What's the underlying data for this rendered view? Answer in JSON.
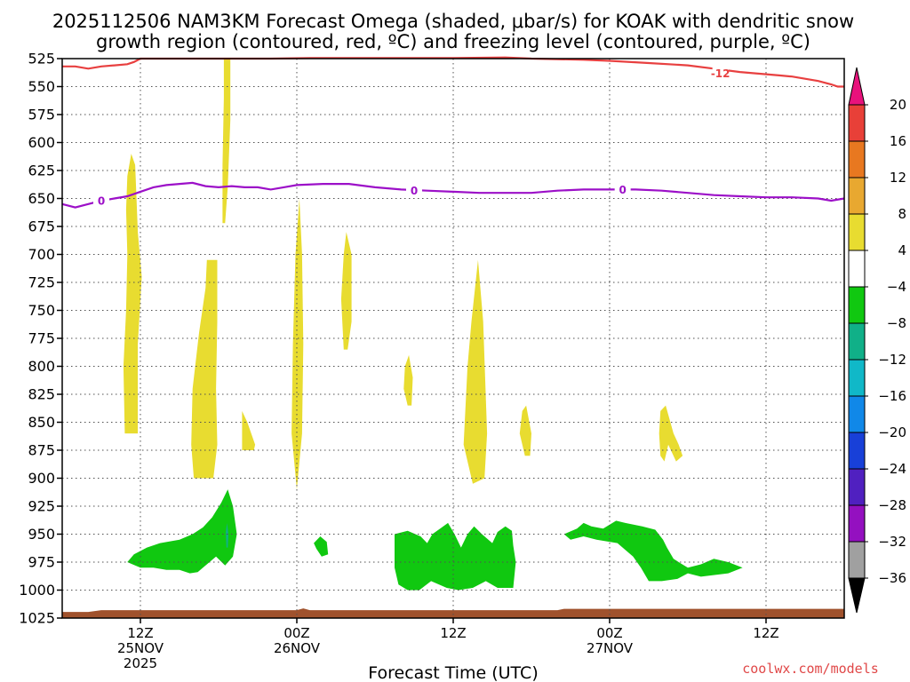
{
  "chart_data": {
    "type": "contour",
    "title_lines": [
      "2025112506 NAM3KM Forecast Omega (shaded, μbar/s) for KOAK with dendritic snow",
      "growth region (contoured, red, ºC) and freezing level (contoured, purple, ºC)"
    ],
    "xlabel": "Forecast Time (UTC)",
    "ylabel": "",
    "credit": "coolwx.com/models",
    "x_range_hours": [
      0,
      60
    ],
    "y_range_mb": [
      525,
      1025
    ],
    "y_ticks": [
      525,
      550,
      575,
      600,
      625,
      650,
      675,
      700,
      725,
      750,
      775,
      800,
      825,
      850,
      875,
      900,
      925,
      950,
      975,
      1000,
      1025
    ],
    "x_ticks": [
      {
        "hour": 6,
        "lines": [
          "12Z",
          "25NOV",
          "2025"
        ]
      },
      {
        "hour": 18,
        "lines": [
          "00Z",
          "26NOV"
        ]
      },
      {
        "hour": 30,
        "lines": [
          "12Z"
        ]
      },
      {
        "hour": 42,
        "lines": [
          "00Z",
          "27NOV"
        ]
      },
      {
        "hour": 54,
        "lines": [
          "12Z"
        ]
      }
    ],
    "grid": "dotted",
    "colorbar": {
      "labels": [
        "20",
        "16",
        "12",
        "8",
        "4",
        "−4",
        "−8",
        "−12",
        "−16",
        "−20",
        "−24",
        "−28",
        "−32",
        "−36"
      ],
      "colors": [
        "#e8127c",
        "#e84038",
        "#e87820",
        "#e8a830",
        "#e8dc30",
        "#ffffff",
        "#10c810",
        "#10b088",
        "#10b8c8",
        "#1088e8",
        "#1840d8",
        "#5020c0",
        "#9410c0",
        "#a0a0a0",
        "#000000"
      ]
    },
    "contours": [
      {
        "name": "dendritic snow growth region",
        "color": "#e84040",
        "label": "-12",
        "points": [
          [
            0,
            532
          ],
          [
            1,
            532
          ],
          [
            2,
            534
          ],
          [
            3,
            532
          ],
          [
            4,
            531
          ],
          [
            5,
            530
          ],
          [
            5.5,
            528
          ],
          [
            6,
            525
          ],
          [
            16,
            525
          ],
          [
            19,
            524.5
          ],
          [
            26,
            524.5
          ],
          [
            30,
            524.5
          ],
          [
            34,
            524
          ],
          [
            36,
            525
          ],
          [
            40,
            526
          ],
          [
            42,
            527
          ],
          [
            45,
            529
          ],
          [
            48,
            531
          ],
          [
            50,
            534
          ],
          [
            52,
            537
          ],
          [
            54,
            539
          ],
          [
            55,
            540
          ],
          [
            56,
            541
          ],
          [
            57,
            543
          ],
          [
            58,
            545
          ],
          [
            59,
            548
          ],
          [
            59.5,
            550
          ],
          [
            60,
            550
          ]
        ]
      },
      {
        "name": "freezing level",
        "color": "#9c10c8",
        "label": "0",
        "points": [
          [
            0,
            655
          ],
          [
            1,
            658
          ],
          [
            2,
            655
          ],
          [
            3,
            652
          ],
          [
            4,
            650
          ],
          [
            5,
            648
          ],
          [
            6,
            644
          ],
          [
            7,
            640
          ],
          [
            8,
            638
          ],
          [
            9,
            637
          ],
          [
            10,
            636
          ],
          [
            11,
            639
          ],
          [
            12,
            640
          ],
          [
            13,
            639
          ],
          [
            14,
            640
          ],
          [
            15,
            640
          ],
          [
            16,
            642
          ],
          [
            17,
            640
          ],
          [
            18,
            638
          ],
          [
            20,
            637
          ],
          [
            22,
            637
          ],
          [
            24,
            640
          ],
          [
            26,
            642
          ],
          [
            28,
            643
          ],
          [
            30,
            644
          ],
          [
            32,
            645
          ],
          [
            34,
            645
          ],
          [
            36,
            645
          ],
          [
            38,
            643
          ],
          [
            40,
            642
          ],
          [
            42,
            642
          ],
          [
            44,
            642
          ],
          [
            46,
            643
          ],
          [
            48,
            645
          ],
          [
            50,
            647
          ],
          [
            52,
            648
          ],
          [
            54,
            649
          ],
          [
            56,
            649
          ],
          [
            58,
            650
          ],
          [
            59,
            652
          ],
          [
            60,
            650
          ]
        ]
      }
    ],
    "omega_regions": [
      {
        "level": "4",
        "points": [
          [
            4.8,
            860
          ],
          [
            4.7,
            800
          ],
          [
            4.9,
            750
          ],
          [
            5,
            700
          ],
          [
            4.9,
            660
          ],
          [
            5,
            630
          ],
          [
            5.3,
            610
          ],
          [
            5.6,
            620
          ],
          [
            5.8,
            680
          ],
          [
            6.1,
            720
          ],
          [
            5.8,
            780
          ],
          [
            5.8,
            860
          ]
        ]
      },
      {
        "level": "4",
        "points": [
          [
            10.1,
            900
          ],
          [
            9.9,
            870
          ],
          [
            10,
            820
          ],
          [
            10.5,
            770
          ],
          [
            11,
            730
          ],
          [
            11.1,
            705
          ],
          [
            11.9,
            705
          ],
          [
            11.9,
            760
          ],
          [
            11.8,
            820
          ],
          [
            11.9,
            870
          ],
          [
            11.6,
            900
          ]
        ]
      },
      {
        "level": "4",
        "points": [
          [
            12.3,
            672
          ],
          [
            12.3,
            620
          ],
          [
            12.4,
            560
          ],
          [
            12.4,
            525
          ],
          [
            12.9,
            525
          ],
          [
            12.9,
            580
          ],
          [
            12.7,
            640
          ],
          [
            12.5,
            672
          ]
        ]
      },
      {
        "level": "4",
        "points": [
          [
            13.8,
            875
          ],
          [
            13.8,
            840
          ],
          [
            14.2,
            850
          ],
          [
            14.8,
            870
          ],
          [
            14.7,
            875
          ]
        ]
      },
      {
        "level": "4",
        "points": [
          [
            18,
            910
          ],
          [
            17.6,
            860
          ],
          [
            17.7,
            780
          ],
          [
            17.9,
            700
          ],
          [
            18.2,
            650
          ],
          [
            18.4,
            700
          ],
          [
            18.5,
            780
          ],
          [
            18.4,
            860
          ]
        ]
      },
      {
        "level": "4",
        "points": [
          [
            21.6,
            785
          ],
          [
            21.4,
            740
          ],
          [
            21.6,
            700
          ],
          [
            21.8,
            680
          ],
          [
            22.2,
            700
          ],
          [
            22.2,
            760
          ],
          [
            21.9,
            785
          ]
        ]
      },
      {
        "level": "4",
        "points": [
          [
            26.5,
            835
          ],
          [
            26.2,
            820
          ],
          [
            26.3,
            800
          ],
          [
            26.6,
            790
          ],
          [
            26.9,
            810
          ],
          [
            26.8,
            835
          ]
        ]
      },
      {
        "level": "4",
        "points": [
          [
            31.5,
            905
          ],
          [
            30.8,
            870
          ],
          [
            31.1,
            800
          ],
          [
            31.4,
            760
          ],
          [
            31.9,
            705
          ],
          [
            32.3,
            760
          ],
          [
            32.6,
            860
          ],
          [
            32.4,
            900
          ]
        ]
      },
      {
        "level": "4",
        "points": [
          [
            35.5,
            880
          ],
          [
            35.1,
            860
          ],
          [
            35.3,
            840
          ],
          [
            35.6,
            835
          ],
          [
            36,
            860
          ],
          [
            35.9,
            880
          ]
        ]
      },
      {
        "level": "4",
        "points": [
          [
            45.9,
            880
          ],
          [
            45.8,
            860
          ],
          [
            45.9,
            840
          ],
          [
            46.3,
            835
          ],
          [
            46.9,
            860
          ],
          [
            47.3,
            870
          ],
          [
            47.6,
            880
          ],
          [
            47.1,
            885
          ],
          [
            46.5,
            870
          ],
          [
            46.2,
            885
          ]
        ]
      },
      {
        "level": "-4",
        "points": [
          [
            5,
            975
          ],
          [
            5.5,
            968
          ],
          [
            6.5,
            962
          ],
          [
            7.5,
            958
          ],
          [
            9,
            955
          ],
          [
            10,
            950
          ],
          [
            10.8,
            944
          ],
          [
            11.5,
            935
          ],
          [
            12.2,
            922
          ],
          [
            12.7,
            910
          ],
          [
            13.1,
            925
          ],
          [
            13.4,
            950
          ],
          [
            13.1,
            970
          ],
          [
            12.5,
            978
          ],
          [
            11.8,
            970
          ],
          [
            11,
            978
          ],
          [
            10.4,
            984
          ],
          [
            9.8,
            985
          ],
          [
            9,
            982
          ],
          [
            8,
            982
          ],
          [
            7,
            980
          ],
          [
            6,
            980
          ]
        ]
      },
      {
        "level": "-4",
        "points": [
          [
            19.3,
            958
          ],
          [
            19.8,
            952
          ],
          [
            20.3,
            957
          ],
          [
            20.4,
            968
          ],
          [
            19.9,
            970
          ],
          [
            19.5,
            963
          ]
        ]
      },
      {
        "level": "-4",
        "points": [
          [
            25.5,
            950
          ],
          [
            26.5,
            947
          ],
          [
            27.5,
            952
          ],
          [
            28,
            958
          ],
          [
            28.4,
            950
          ],
          [
            29,
            945
          ],
          [
            29.6,
            940
          ],
          [
            30.1,
            950
          ],
          [
            30.6,
            962
          ],
          [
            31.1,
            950
          ],
          [
            31.6,
            943
          ],
          [
            32.2,
            950
          ],
          [
            33,
            958
          ],
          [
            33.4,
            948
          ],
          [
            34,
            943
          ],
          [
            34.5,
            947
          ],
          [
            34.6,
            960
          ],
          [
            34.8,
            975
          ],
          [
            34.6,
            998
          ],
          [
            33.4,
            998
          ],
          [
            32.5,
            992
          ],
          [
            31.5,
            998
          ],
          [
            30.4,
            1000
          ],
          [
            29.5,
            998
          ],
          [
            28.3,
            992
          ],
          [
            27.4,
            1000
          ],
          [
            26.5,
            1000
          ],
          [
            25.8,
            995
          ],
          [
            25.5,
            980
          ]
        ]
      },
      {
        "level": "-4",
        "points": [
          [
            38.5,
            950
          ],
          [
            39.5,
            945
          ],
          [
            40,
            940
          ],
          [
            40.6,
            943
          ],
          [
            41.5,
            945
          ],
          [
            42.5,
            938
          ],
          [
            43.2,
            940
          ],
          [
            44.5,
            943
          ],
          [
            45.5,
            946
          ],
          [
            46.1,
            955
          ],
          [
            46.4,
            962
          ],
          [
            46.9,
            972
          ],
          [
            47.3,
            975
          ],
          [
            48,
            980
          ],
          [
            49,
            977
          ],
          [
            50,
            972
          ],
          [
            51.1,
            975
          ],
          [
            52.2,
            980
          ],
          [
            51.1,
            985
          ],
          [
            49,
            988
          ],
          [
            48,
            985
          ],
          [
            47.2,
            990
          ],
          [
            46,
            992
          ],
          [
            45,
            992
          ],
          [
            44.4,
            980
          ],
          [
            43.8,
            970
          ],
          [
            42.6,
            958
          ],
          [
            41,
            955
          ],
          [
            40,
            952
          ],
          [
            39,
            955
          ]
        ]
      },
      {
        "level": "-8",
        "points": [
          [
            12.55,
            948
          ],
          [
            12.65,
            940
          ],
          [
            12.75,
            950
          ],
          [
            12.7,
            962
          ],
          [
            12.6,
            962
          ]
        ]
      }
    ],
    "surface_band": {
      "color": "#a0522d",
      "pressure_mb": [
        1018,
        1030
      ]
    }
  },
  "colors": {
    "axis": "#000000",
    "grid": "#606060",
    "text": "#000000"
  }
}
